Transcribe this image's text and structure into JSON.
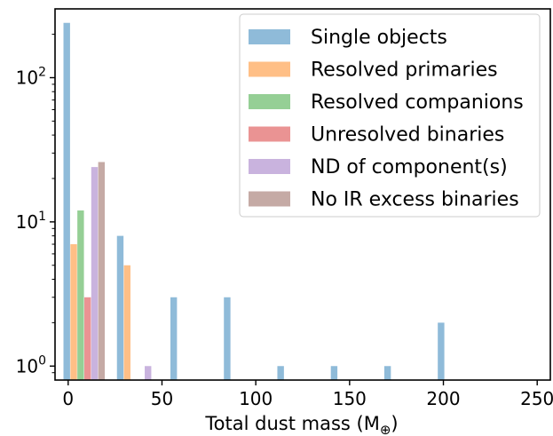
{
  "chart_data": {
    "type": "bar",
    "xlabel": "Total dust mass (M",
    "xlabel_sub": "⊕",
    "xlabel_close": ")",
    "yscale": "log",
    "xlim": [
      -7,
      257
    ],
    "ylim": [
      0.8,
      300
    ],
    "x_ticks": [
      0,
      50,
      100,
      150,
      200,
      250
    ],
    "x_tick_labels": [
      "0",
      "50",
      "100",
      "150",
      "200",
      "250"
    ],
    "y_ticks": [
      1,
      10,
      100
    ],
    "y_tick_labels": [
      {
        "base": "10",
        "exp": "0"
      },
      {
        "base": "10",
        "exp": "1"
      },
      {
        "base": "10",
        "exp": "2"
      }
    ],
    "legend_position": "top-right",
    "bin_width": 3.5,
    "series": [
      {
        "name": "Single objects",
        "color": "#1f77b4",
        "points": [
          {
            "x": -2.5,
            "y": 240
          },
          {
            "x": 26,
            "y": 8
          },
          {
            "x": 54.5,
            "y": 3
          },
          {
            "x": 83,
            "y": 3
          },
          {
            "x": 111.5,
            "y": 1
          },
          {
            "x": 140,
            "y": 1
          },
          {
            "x": 168.5,
            "y": 1
          },
          {
            "x": 197,
            "y": 2
          }
        ]
      },
      {
        "name": "Resolved primaries",
        "color": "#ff7f0e",
        "points": [
          {
            "x": 1.2,
            "y": 7
          },
          {
            "x": 29.7,
            "y": 5
          }
        ]
      },
      {
        "name": "Resolved companions",
        "color": "#2ca02c",
        "points": [
          {
            "x": 4.9,
            "y": 12
          }
        ]
      },
      {
        "name": "Unresolved binaries",
        "color": "#d62728",
        "points": [
          {
            "x": 8.6,
            "y": 3
          }
        ]
      },
      {
        "name": "ND of component(s)",
        "color": "#9467bd",
        "points": [
          {
            "x": 12.3,
            "y": 24
          },
          {
            "x": 40.8,
            "y": 1
          }
        ]
      },
      {
        "name": "No IR excess binaries",
        "color": "#8c564b",
        "points": [
          {
            "x": 16.0,
            "y": 26
          }
        ]
      }
    ],
    "bar_alpha": 0.5
  }
}
